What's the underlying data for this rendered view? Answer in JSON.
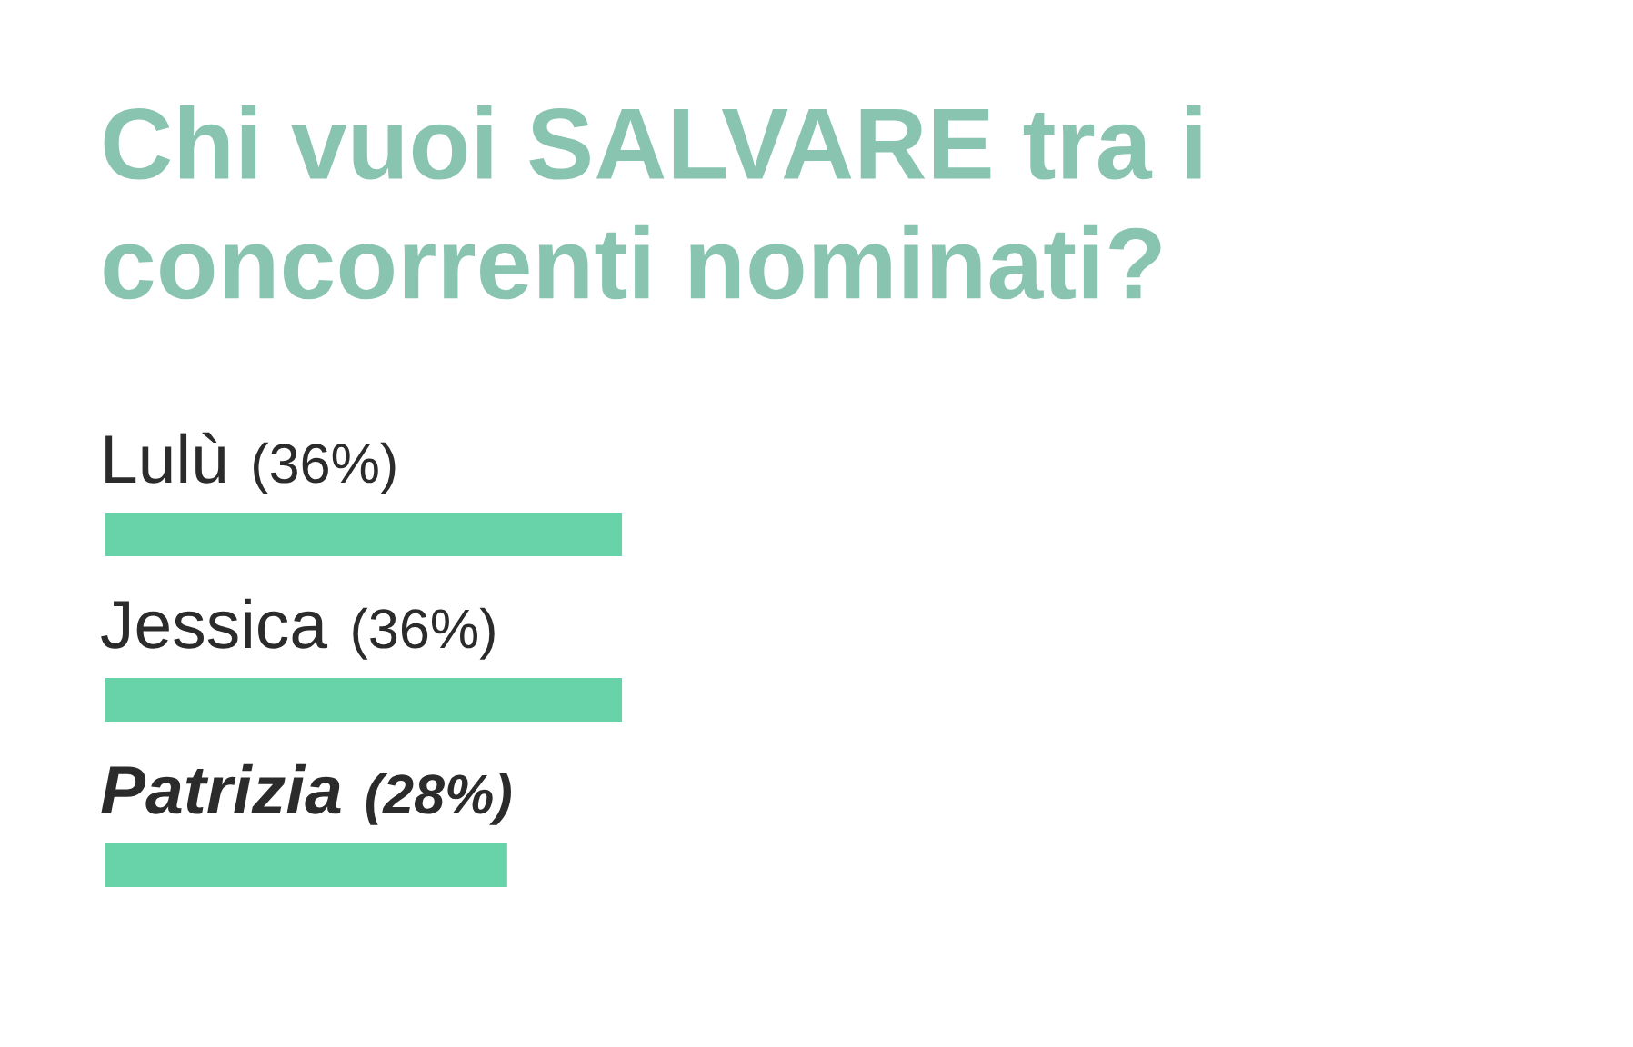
{
  "chart_data": {
    "type": "bar",
    "orientation": "horizontal",
    "title": "Chi vuoi SALVARE tra i concorrenti nominati?",
    "categories": [
      "Lulù",
      "Jessica",
      "Patrizia"
    ],
    "values": [
      36,
      36,
      28
    ],
    "value_labels": [
      "(36%)",
      "(36%)",
      "(28%)"
    ],
    "color": "#68d2a8"
  }
}
